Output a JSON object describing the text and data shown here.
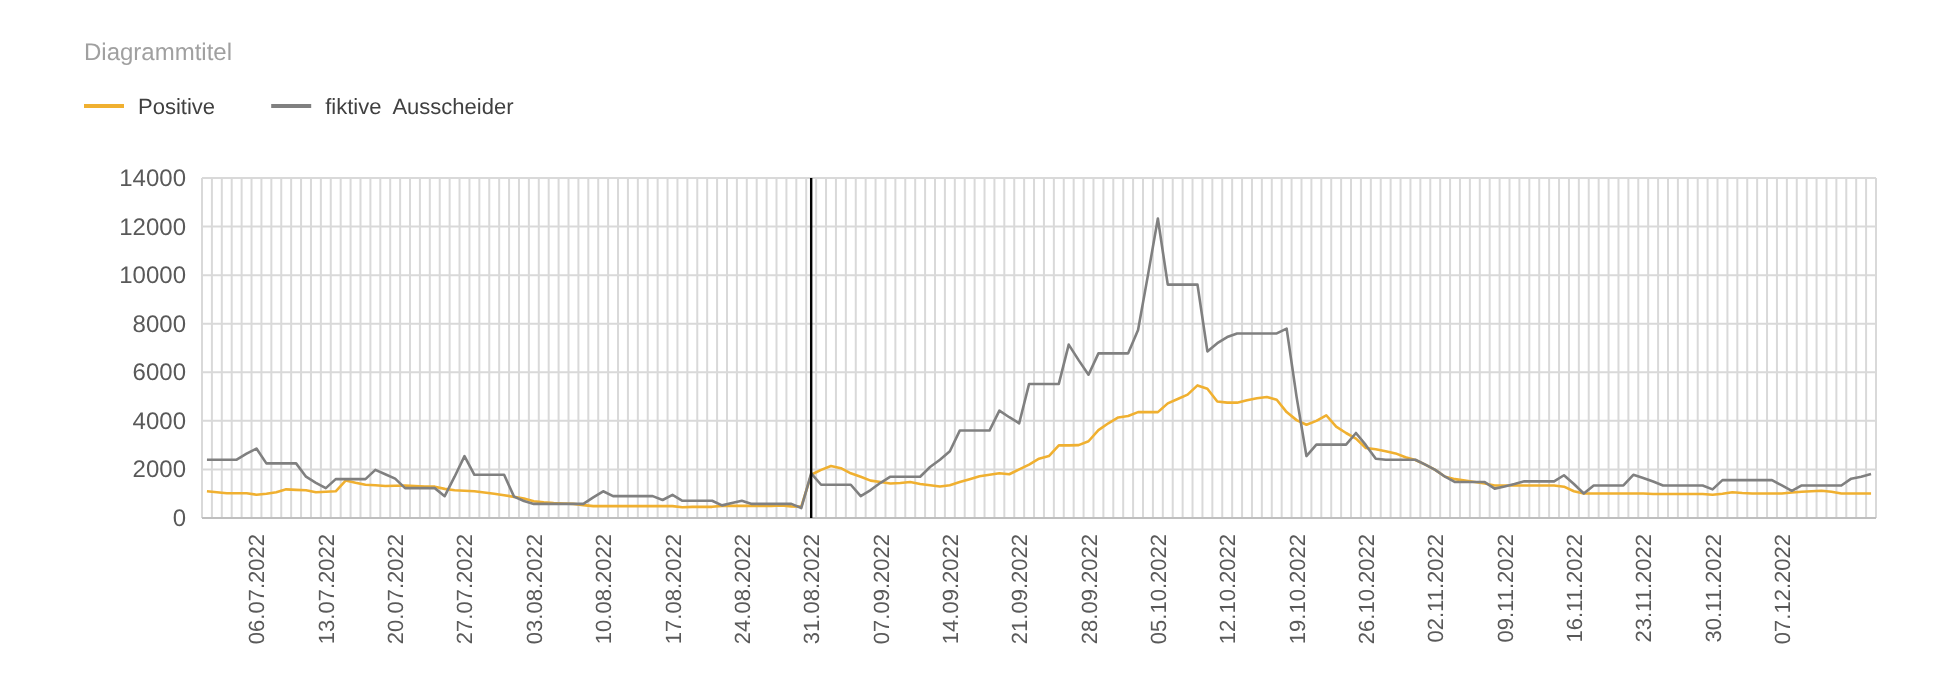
{
  "chart_data": {
    "type": "line",
    "title": "Diagrammtitel",
    "categories": [
      null,
      null,
      null,
      null,
      null,
      "06.07.2022",
      null,
      null,
      null,
      null,
      null,
      null,
      "13.07.2022",
      null,
      null,
      null,
      null,
      null,
      null,
      "20.07.2022",
      null,
      null,
      null,
      null,
      null,
      null,
      "27.07.2022",
      null,
      null,
      null,
      null,
      null,
      null,
      "03.08.2022",
      null,
      null,
      null,
      null,
      null,
      null,
      "10.08.2022",
      null,
      null,
      null,
      null,
      null,
      null,
      "17.08.2022",
      null,
      null,
      null,
      null,
      null,
      null,
      "24.08.2022",
      null,
      null,
      null,
      null,
      null,
      null,
      "31.08.2022",
      null,
      null,
      null,
      null,
      null,
      null,
      "07.09.2022",
      null,
      null,
      null,
      null,
      null,
      null,
      "14.09.2022",
      null,
      null,
      null,
      null,
      null,
      null,
      "21.09.2022",
      null,
      null,
      null,
      null,
      null,
      null,
      "28.09.2022",
      null,
      null,
      null,
      null,
      null,
      null,
      "05.10.2022",
      null,
      null,
      null,
      null,
      null,
      null,
      "12.10.2022",
      null,
      null,
      null,
      null,
      null,
      null,
      "19.10.2022",
      null,
      null,
      null,
      null,
      null,
      null,
      "26.10.2022",
      null,
      null,
      null,
      null,
      null,
      null,
      "02.11.2022",
      null,
      null,
      null,
      null,
      null,
      null,
      "09.11.2022",
      null,
      null,
      null,
      null,
      null,
      null,
      "16.11.2022",
      null,
      null,
      null,
      null,
      null,
      null,
      "23.11.2022",
      null,
      null,
      null,
      null,
      null,
      null,
      "30.11.2022",
      null,
      null,
      null,
      null,
      null,
      null,
      "07.12.2022",
      null,
      null,
      null,
      null,
      null,
      null,
      null,
      null,
      null
    ],
    "series": [
      {
        "name": "Positive",
        "color": "#f0b030",
        "values": [
          1100,
          1060,
          1020,
          1020,
          1020,
          960,
          1000,
          1060,
          1180,
          1160,
          1140,
          1060,
          1080,
          1100,
          1540,
          1450,
          1370,
          1350,
          1320,
          1330,
          1340,
          1320,
          1300,
          1290,
          1200,
          1140,
          1120,
          1100,
          1050,
          1000,
          940,
          870,
          800,
          690,
          650,
          620,
          600,
          580,
          530,
          490,
          490,
          490,
          490,
          490,
          490,
          490,
          490,
          490,
          440,
          460,
          460,
          460,
          500,
          500,
          500,
          500,
          500,
          500,
          520,
          480,
          470,
          1780,
          1980,
          2140,
          2050,
          1840,
          1700,
          1540,
          1480,
          1420,
          1440,
          1480,
          1400,
          1350,
          1300,
          1350,
          1480,
          1600,
          1720,
          1780,
          1840,
          1800,
          2000,
          2200,
          2440,
          2550,
          2990,
          2990,
          3000,
          3160,
          3620,
          3900,
          4140,
          4200,
          4360,
          4360,
          4360,
          4720,
          4900,
          5080,
          5460,
          5320,
          4800,
          4750,
          4750,
          4850,
          4930,
          4980,
          4870,
          4360,
          4030,
          3840,
          4000,
          4230,
          3760,
          3500,
          3270,
          2880,
          2830,
          2750,
          2660,
          2500,
          2390,
          2200,
          1980,
          1700,
          1600,
          1540,
          1480,
          1420,
          1340,
          1340,
          1340,
          1340,
          1340,
          1340,
          1340,
          1290,
          1100,
          1010,
          1010,
          1010,
          1010,
          1010,
          1010,
          1010,
          990,
          990,
          990,
          990,
          990,
          990,
          960,
          1000,
          1060,
          1030,
          1010,
          1010,
          1010,
          1010,
          1050,
          1080,
          1100,
          1120,
          1080,
          1010,
          1010,
          1010,
          1010
        ]
      },
      {
        "name": "fiktive  Ausscheider",
        "color": "#808080",
        "values": [
          2400,
          2400,
          2400,
          2400,
          2650,
          2860,
          2250,
          2250,
          2250,
          2250,
          1700,
          1450,
          1230,
          1600,
          1600,
          1600,
          1600,
          1980,
          1800,
          1620,
          1230,
          1230,
          1230,
          1230,
          900,
          1700,
          2550,
          1780,
          1780,
          1780,
          1780,
          880,
          700,
          580,
          580,
          580,
          580,
          580,
          580,
          850,
          1100,
          900,
          900,
          900,
          900,
          900,
          740,
          950,
          710,
          710,
          710,
          710,
          520,
          620,
          710,
          580,
          580,
          580,
          580,
          580,
          410,
          1840,
          1370,
          1370,
          1370,
          1370,
          900,
          1150,
          1450,
          1700,
          1700,
          1700,
          1700,
          2100,
          2400,
          2750,
          3600,
          3600,
          3600,
          3600,
          4420,
          4150,
          3900,
          5520,
          5520,
          5520,
          5520,
          7140,
          6500,
          5900,
          6780,
          6780,
          6780,
          6780,
          7740,
          10000,
          12330,
          9610,
          9610,
          9610,
          9610,
          6860,
          7200,
          7450,
          7600,
          7600,
          7600,
          7600,
          7600,
          7800,
          5000,
          2550,
          3020,
          3020,
          3020,
          3020,
          3500,
          3000,
          2440,
          2400,
          2400,
          2400,
          2400,
          2200,
          1980,
          1700,
          1480,
          1480,
          1480,
          1480,
          1210,
          1300,
          1400,
          1510,
          1510,
          1510,
          1510,
          1760,
          1400,
          1010,
          1340,
          1340,
          1340,
          1340,
          1780,
          1650,
          1500,
          1340,
          1340,
          1340,
          1340,
          1340,
          1180,
          1560,
          1560,
          1560,
          1560,
          1560,
          1560,
          1340,
          1120,
          1340,
          1340,
          1340,
          1340,
          1340,
          1620,
          1700,
          1810
        ]
      }
    ],
    "ylim": [
      0,
      14000
    ],
    "yticks": [
      0,
      2000,
      4000,
      6000,
      8000,
      10000,
      12000,
      14000
    ],
    "grid": true,
    "legend": "top left",
    "ref_lines": [
      {
        "axis": "x",
        "value": "31.08.2022",
        "color": "#000000"
      }
    ]
  }
}
